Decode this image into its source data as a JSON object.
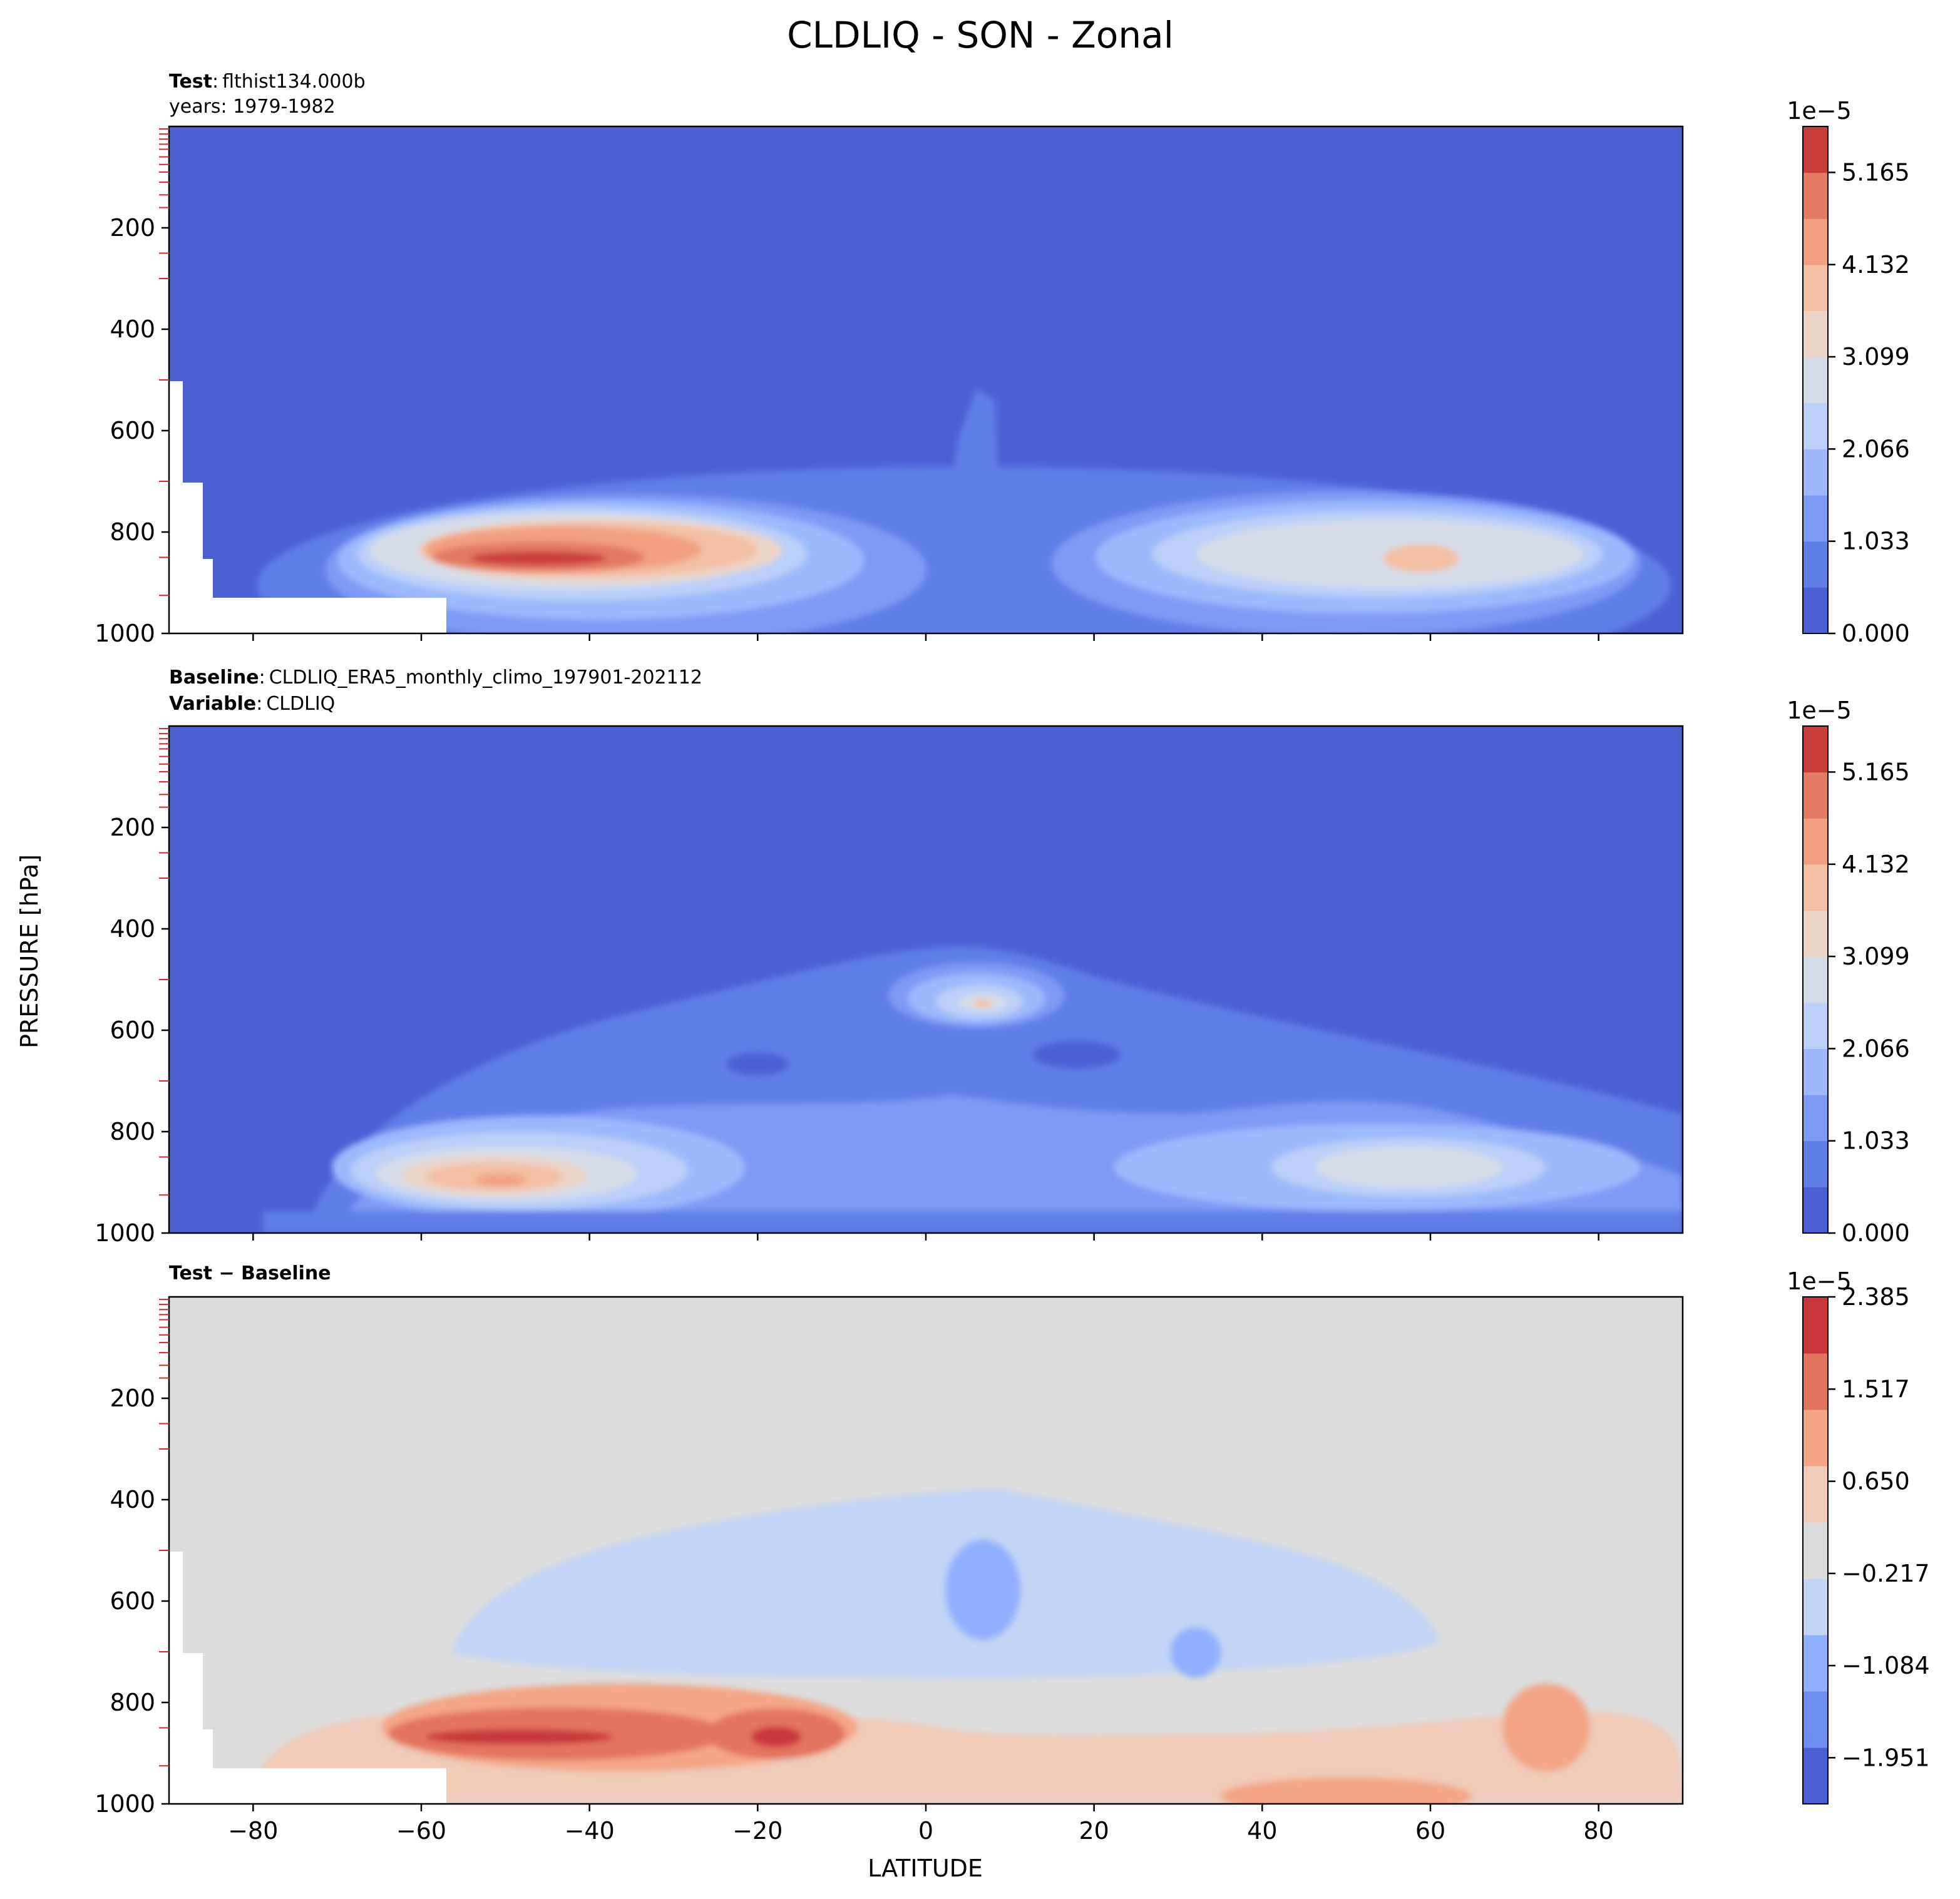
{
  "figure": {
    "suptitle": "CLDLIQ - SON - Zonal",
    "ylabel": "PRESSURE [hPa]",
    "xlabel": "LATITUDE"
  },
  "colors": {
    "seq_levels": [
      "#4a60d3",
      "#5f7ee6",
      "#7e9cf5",
      "#9eb8fd",
      "#bccff9",
      "#d5dce8",
      "#ead4c8",
      "#f4bfa3",
      "#f29f80",
      "#e37a62",
      "#c83e3b"
    ],
    "diff_levels": [
      "#4a60d3",
      "#6d8df0",
      "#8fafff",
      "#c3d4f5",
      "#dcdcdc",
      "#f0cbb9",
      "#f4a685",
      "#e2745d",
      "#c8353a"
    ],
    "masked": "#ffffff",
    "grid_tick": "#d62728"
  },
  "chart_data": [
    {
      "type": "heatmap",
      "panel": "test",
      "annotations": [
        {
          "label": "Test",
          "sep": ":",
          "text": "flthist134.000b"
        },
        {
          "label": "",
          "sep": "",
          "text": "years: 1979-1982"
        }
      ],
      "x_range": [
        -90,
        90
      ],
      "y_range": [
        1000,
        0
      ],
      "yticks": [
        "200",
        "400",
        "600",
        "800",
        "1000"
      ],
      "colorbar": {
        "exponent": "1e−5",
        "ticks": [
          "0.000",
          "1.033",
          "2.066",
          "3.099",
          "4.132",
          "5.165"
        ],
        "vmin": 0,
        "vmax": 5.68
      },
      "maximum": {
        "latitude": -47,
        "pressure": 850,
        "value": 5.5
      }
    },
    {
      "type": "heatmap",
      "panel": "baseline",
      "annotations": [
        {
          "label": "Baseline",
          "sep": ":",
          "text": "CLDLIQ_ERA5_monthly_climo_197901-202112"
        },
        {
          "label": "Variable",
          "sep": ":",
          "text": "CLDLIQ"
        }
      ],
      "x_range": [
        -90,
        90
      ],
      "y_range": [
        1000,
        0
      ],
      "yticks": [
        "200",
        "400",
        "600",
        "800",
        "1000"
      ],
      "colorbar": {
        "exponent": "1e−5",
        "ticks": [
          "0.000",
          "1.033",
          "2.066",
          "3.099",
          "4.132",
          "5.165"
        ],
        "vmin": 0,
        "vmax": 5.68
      },
      "maximum": {
        "latitude": -50,
        "pressure": 890,
        "value": 4.3
      }
    },
    {
      "type": "heatmap",
      "panel": "difference",
      "annotations": [
        {
          "label": "Test − Baseline",
          "sep": "",
          "text": ""
        }
      ],
      "x_range": [
        -90,
        90
      ],
      "y_range": [
        1000,
        0
      ],
      "yticks": [
        "200",
        "400",
        "600",
        "800",
        "1000"
      ],
      "xticks": [
        "−80",
        "−60",
        "−40",
        "−20",
        "0",
        "20",
        "40",
        "60",
        "80"
      ],
      "colorbar": {
        "exponent": "1e−5",
        "ticks": [
          "2.385",
          "1.517",
          "0.650",
          "−0.217",
          "−1.084",
          "−1.951"
        ],
        "vmin": -2.385,
        "vmax": 2.385
      }
    }
  ]
}
